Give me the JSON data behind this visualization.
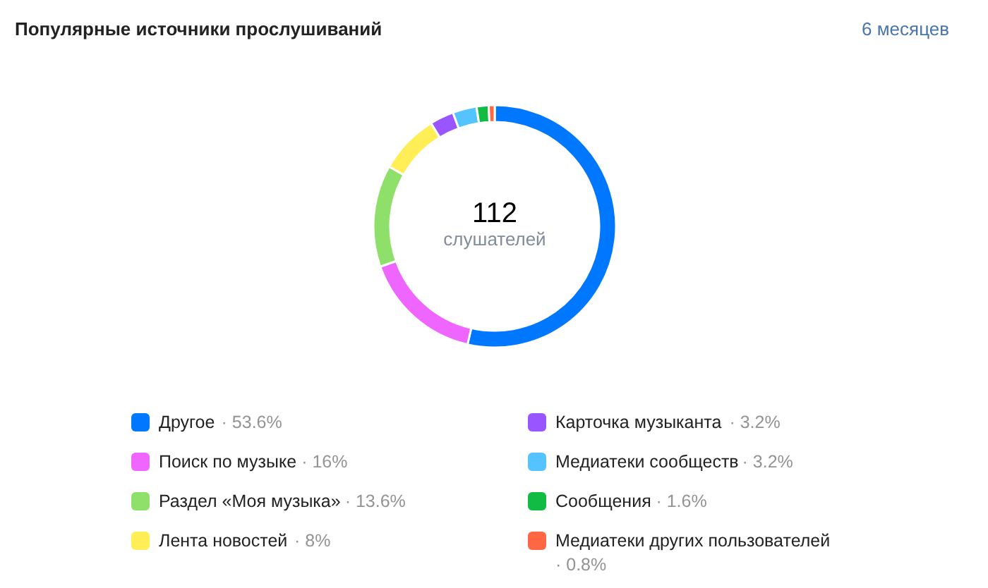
{
  "chart_data": {
    "type": "donut",
    "title": "Популярные источники прослушиваний",
    "annotations": [
      "112",
      "слушателей",
      "6 месяцев"
    ],
    "categories": [
      "Другое",
      "Поиск по музыке",
      "Раздел «Моя музыка»",
      "Лента новостей",
      "Карточка музыканта",
      "Медиатеки сообществ",
      "Сообщения",
      "Медиатеки других пользователей"
    ],
    "values": [
      53.6,
      16,
      13.6,
      8,
      3.2,
      3.2,
      1.6,
      0.8
    ],
    "value_labels": [
      "· 53.6%",
      "· 16%",
      "· 13.6%",
      "· 8%",
      "· 3.2%",
      "· 3.2%",
      "· 1.6%",
      "· 0.8%"
    ],
    "colors": [
      "#0077ff",
      "#ee66ff",
      "#8fe06a",
      "#ffee55",
      "#9955ff",
      "#55c3ff",
      "#11bb44",
      "#ff6644"
    ],
    "legend": "bottom"
  }
}
